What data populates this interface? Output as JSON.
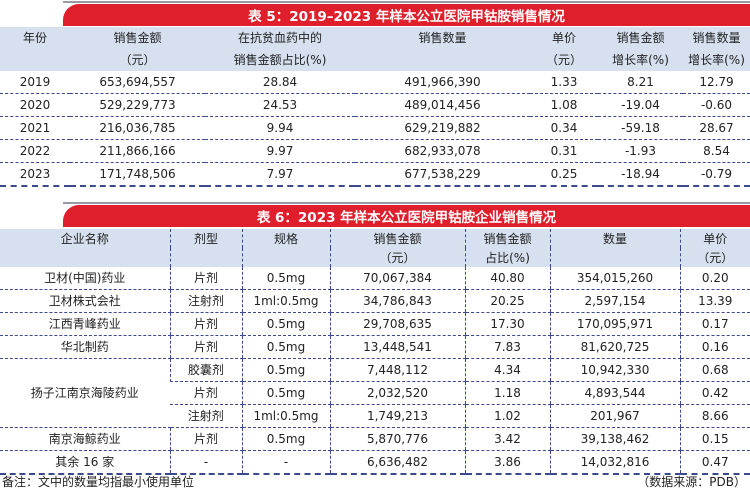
{
  "table5": {
    "title": "表 5：2019–2023 年样本公立医院甲钴胺销售情况",
    "header_line1": [
      "年份",
      "销售金额",
      "在抗贫血药中的",
      "销售数量",
      "单价",
      "销售金额",
      "销售数量"
    ],
    "header_line2": [
      "",
      "（元）",
      "销售金额占比(%)",
      "",
      "（元）",
      "增长率(%)",
      "增长率(%)"
    ],
    "rows": [
      [
        "2019",
        "653,694,557",
        "28.84",
        "491,966,390",
        "1.33",
        "8.21",
        "12.79"
      ],
      [
        "2020",
        "529,229,773",
        "24.53",
        "489,014,456",
        "1.08",
        "-19.04",
        "-0.60"
      ],
      [
        "2021",
        "216,036,785",
        "9.94",
        "629,219,882",
        "0.34",
        "-59.18",
        "28.67"
      ],
      [
        "2022",
        "211,866,166",
        "9.97",
        "682,933,078",
        "0.31",
        "-1.93",
        "8.54"
      ],
      [
        "2023",
        "171,748,506",
        "7.97",
        "677,538,229",
        "0.25",
        "-18.94",
        "-0.79"
      ]
    ]
  },
  "table6": {
    "title": "表 6：2023 年样本公立医院甲钴胺企业销售情况",
    "header_line1": [
      "企业名称",
      "剂型",
      "规格",
      "销售金额",
      "销售金额",
      "数量",
      "单价"
    ],
    "header_line2": [
      "",
      "",
      "",
      "（元）",
      "占比(%)",
      "",
      "（元）"
    ],
    "rows": [
      {
        "company": "卫材(中国)药业",
        "form": "片剂",
        "spec": "0.5mg",
        "amount": "70,067,384",
        "share": "40.80",
        "qty": "354,015,260",
        "price": "0.20"
      },
      {
        "company": "卫材株式会社",
        "form": "注射剂",
        "spec": "1ml:0.5mg",
        "amount": "34,786,843",
        "share": "20.25",
        "qty": "2,597,154",
        "price": "13.39"
      },
      {
        "company": "江西青峰药业",
        "form": "片剂",
        "spec": "0.5mg",
        "amount": "29,708,635",
        "share": "17.30",
        "qty": "170,095,971",
        "price": "0.17"
      },
      {
        "company": "华北制药",
        "form": "片剂",
        "spec": "0.5mg",
        "amount": "13,448,541",
        "share": "7.83",
        "qty": "81,620,725",
        "price": "0.16"
      },
      {
        "company": "扬子江南京海陵药业",
        "form": "胶囊剂",
        "spec": "0.5mg",
        "amount": "7,448,112",
        "share": "4.34",
        "qty": "10,942,330",
        "price": "0.68"
      },
      {
        "company": "",
        "form": "片剂",
        "spec": "0.5mg",
        "amount": "2,032,520",
        "share": "1.18",
        "qty": "4,893,544",
        "price": "0.42"
      },
      {
        "company": "",
        "form": "注射剂",
        "spec": "1ml:0.5mg",
        "amount": "1,749,213",
        "share": "1.02",
        "qty": "201,967",
        "price": "8.66"
      },
      {
        "company": "南京海鲸药业",
        "form": "片剂",
        "spec": "0.5mg",
        "amount": "5,870,776",
        "share": "3.42",
        "qty": "39,138,462",
        "price": "0.15"
      },
      {
        "company": "其余 16 家",
        "form": "-",
        "spec": "-",
        "amount": "6,636,482",
        "share": "3.86",
        "qty": "14,032,816",
        "price": "0.47"
      }
    ]
  },
  "footer": {
    "note": "备注：文中的数量均指最小使用单位",
    "source": "（数据来源：PDB）"
  }
}
